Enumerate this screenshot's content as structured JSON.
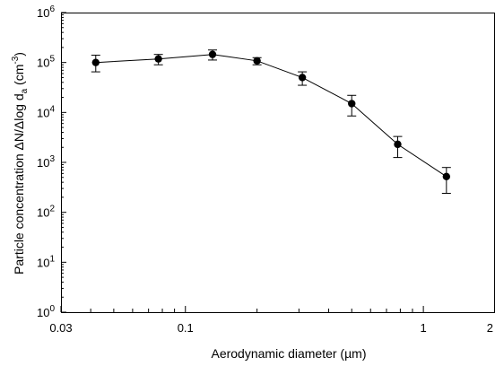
{
  "chart_data": {
    "type": "line",
    "xscale": "log",
    "yscale": "log",
    "xlim": [
      0.03,
      2
    ],
    "ylim": [
      1,
      1000000
    ],
    "grid": false,
    "xlabel": "Aerodynamic diameter (µm)",
    "ylabel": {
      "prefix": "Particle concentration ",
      "delta_n": "ΔN/Δlog d",
      "sub": "a",
      "unit_open": " (cm",
      "sup": "-3",
      "unit_close": ")"
    },
    "x_ticks": [
      {
        "value": 0.03,
        "label": "0.03"
      },
      {
        "value": 0.1,
        "label": "0.1"
      },
      {
        "value": 1,
        "label": "1"
      },
      {
        "value": 2,
        "label": "2"
      }
    ],
    "y_ticks": [
      {
        "value": 1,
        "base": "10",
        "exp": "0"
      },
      {
        "value": 10,
        "base": "10",
        "exp": "1"
      },
      {
        "value": 100,
        "base": "10",
        "exp": "2"
      },
      {
        "value": 1000,
        "base": "10",
        "exp": "3"
      },
      {
        "value": 10000,
        "base": "10",
        "exp": "4"
      },
      {
        "value": 100000,
        "base": "10",
        "exp": "5"
      },
      {
        "value": 1000000,
        "base": "10",
        "exp": "6"
      }
    ],
    "series": [
      {
        "x": [
          0.042,
          0.077,
          0.13,
          0.2,
          0.31,
          0.5,
          0.78,
          1.25
        ],
        "y": [
          100000,
          118000,
          145000,
          108000,
          50000,
          15000,
          2300,
          520
        ],
        "y_err_low": [
          65000,
          90000,
          112000,
          90000,
          35000,
          8500,
          1250,
          240
        ],
        "y_err_high": [
          140000,
          145000,
          178000,
          125000,
          65000,
          22000,
          3300,
          790
        ]
      }
    ]
  }
}
